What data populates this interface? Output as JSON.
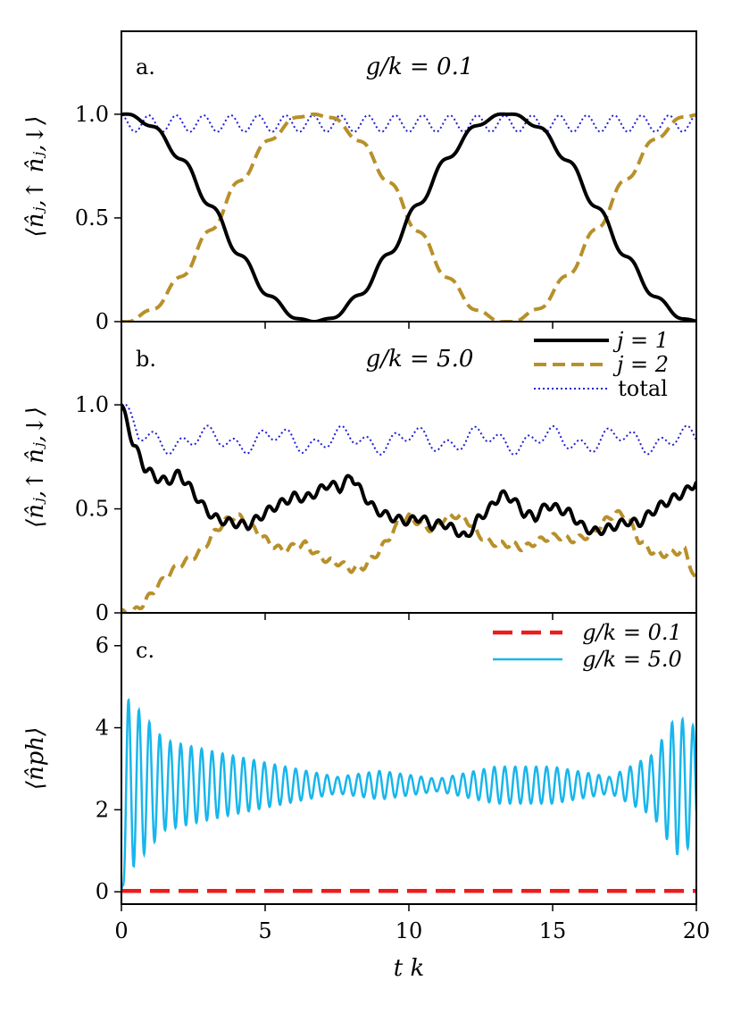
{
  "chart_data": [
    {
      "type": "line",
      "panel": "a.",
      "annotation": "g/k = 0.1",
      "ylabel": "⟨n̂ⱼ,↑ n̂ⱼ,↓⟩",
      "xlim": [
        0,
        20
      ],
      "ylim": [
        0,
        1.4
      ],
      "yticks": [
        "0",
        "0.5",
        "1.0"
      ],
      "series": [
        {
          "name": "j = 1",
          "kind": "osc_cos",
          "period": 13.4,
          "amp": 0.03,
          "freq": 4.4
        },
        {
          "name": "j = 2",
          "kind": "osc_sin",
          "period": 13.4,
          "amp": 0.03,
          "freq": 4.4
        },
        {
          "name": "total",
          "kind": "flat_osc",
          "mean": 0.955,
          "amp": 0.04,
          "freq": 10.5
        }
      ],
      "colors": {
        "j1": "#000000",
        "j2": "#b8902a",
        "total": "#1f1fd6"
      }
    },
    {
      "type": "line",
      "panel": "b.",
      "annotation": "g/k = 5.0",
      "ylabel": "⟨n̂ⱼ,↑ n̂ⱼ,↓⟩",
      "xlim": [
        0,
        20
      ],
      "ylim": [
        0,
        1.4
      ],
      "yticks": [
        "0",
        "0.5",
        "1.0"
      ],
      "series": [
        {
          "name": "j = 1",
          "x": [
            0,
            0.4,
            0.8,
            1.2,
            1.6,
            2.0,
            2.4,
            2.8,
            3.2,
            3.6,
            4.0,
            4.4,
            4.8,
            5.2,
            5.6,
            6.0,
            6.4,
            6.8,
            7.2,
            7.6,
            8.0,
            8.4,
            8.8,
            9.2,
            9.6,
            10.0,
            10.4,
            10.8,
            11.2,
            11.6,
            12.0,
            12.4,
            12.8,
            13.2,
            13.6,
            14.0,
            14.4,
            14.8,
            15.2,
            15.6,
            16.0,
            16.4,
            16.8,
            17.2,
            17.6,
            18.0,
            18.4,
            18.8,
            19.2,
            19.6,
            20.0
          ],
          "y": [
            1.0,
            0.82,
            0.7,
            0.65,
            0.63,
            0.67,
            0.6,
            0.52,
            0.46,
            0.44,
            0.43,
            0.42,
            0.46,
            0.5,
            0.53,
            0.56,
            0.55,
            0.58,
            0.62,
            0.6,
            0.66,
            0.57,
            0.5,
            0.47,
            0.45,
            0.44,
            0.46,
            0.42,
            0.43,
            0.4,
            0.36,
            0.45,
            0.5,
            0.57,
            0.55,
            0.48,
            0.46,
            0.52,
            0.5,
            0.48,
            0.42,
            0.39,
            0.4,
            0.42,
            0.44,
            0.43,
            0.48,
            0.52,
            0.55,
            0.58,
            0.63
          ]
        },
        {
          "name": "j = 2",
          "x": [
            0,
            0.4,
            0.8,
            1.2,
            1.6,
            2.0,
            2.4,
            2.8,
            3.2,
            3.6,
            4.0,
            4.4,
            4.8,
            5.2,
            5.6,
            6.0,
            6.4,
            6.8,
            7.2,
            7.6,
            8.0,
            8.4,
            8.8,
            9.2,
            9.6,
            10.0,
            10.4,
            10.8,
            11.2,
            11.6,
            12.0,
            12.4,
            12.8,
            13.2,
            13.6,
            14.0,
            14.4,
            14.8,
            15.2,
            15.6,
            16.0,
            16.4,
            16.8,
            17.2,
            17.6,
            18.0,
            18.4,
            18.8,
            19.2,
            19.6,
            20.0
          ],
          "y": [
            0.0,
            0.0,
            0.05,
            0.12,
            0.18,
            0.23,
            0.26,
            0.3,
            0.38,
            0.44,
            0.47,
            0.43,
            0.38,
            0.33,
            0.3,
            0.32,
            0.33,
            0.28,
            0.25,
            0.24,
            0.21,
            0.22,
            0.27,
            0.34,
            0.42,
            0.46,
            0.43,
            0.4,
            0.45,
            0.47,
            0.45,
            0.38,
            0.34,
            0.33,
            0.33,
            0.31,
            0.34,
            0.36,
            0.37,
            0.35,
            0.36,
            0.38,
            0.44,
            0.48,
            0.46,
            0.35,
            0.3,
            0.28,
            0.29,
            0.3,
            0.15
          ]
        },
        {
          "name": "total",
          "kind": "wavy",
          "mean": 0.83,
          "amp": 0.07,
          "freq": 3.2
        }
      ],
      "colors": {
        "j1": "#000000",
        "j2": "#b8902a",
        "total": "#1f1fd6"
      },
      "legend": [
        "j = 1",
        "j = 2",
        "total"
      ]
    },
    {
      "type": "line",
      "panel": "c.",
      "ylabel": "⟨n̂ph⟩",
      "xlabel": "t k",
      "xlim": [
        0,
        20
      ],
      "ylim": [
        -0.3,
        6.8
      ],
      "xticks": [
        "0",
        "5",
        "10",
        "15",
        "20"
      ],
      "yticks": [
        "0",
        "2",
        "4",
        "6"
      ],
      "series": [
        {
          "name": "g/k = 0.1",
          "constant": 0.02
        },
        {
          "name": "g/k = 5.0",
          "kind": "beat",
          "mean": 2.6,
          "freq": 2.75,
          "amp_envelope": [
            [
              0.0,
              2.2
            ],
            [
              0.4,
              2.0
            ],
            [
              1.5,
              1.1
            ],
            [
              3.0,
              0.85
            ],
            [
              5.0,
              0.55
            ],
            [
              7.5,
              0.2
            ],
            [
              9.0,
              0.35
            ],
            [
              11.0,
              0.15
            ],
            [
              13.0,
              0.45
            ],
            [
              15.0,
              0.45
            ],
            [
              17.0,
              0.2
            ],
            [
              18.5,
              0.75
            ],
            [
              19.3,
              1.7
            ],
            [
              20.0,
              1.4
            ]
          ]
        }
      ],
      "colors": {
        "g01": "#ee1b1b",
        "g50": "#17b6ec"
      },
      "legend": [
        "g/k = 0.1",
        "g/k = 5.0"
      ]
    }
  ],
  "labels": {
    "panel_a": "a.",
    "panel_b": "b.",
    "panel_c": "c.",
    "annot_a": "g/k = 0.1",
    "annot_b": "g/k = 5.0",
    "xlabel": "t k",
    "legend_b": [
      "j = 1",
      "j = 2",
      "total"
    ],
    "legend_c": [
      "g/k = 0.1",
      "g/k = 5.0"
    ]
  }
}
